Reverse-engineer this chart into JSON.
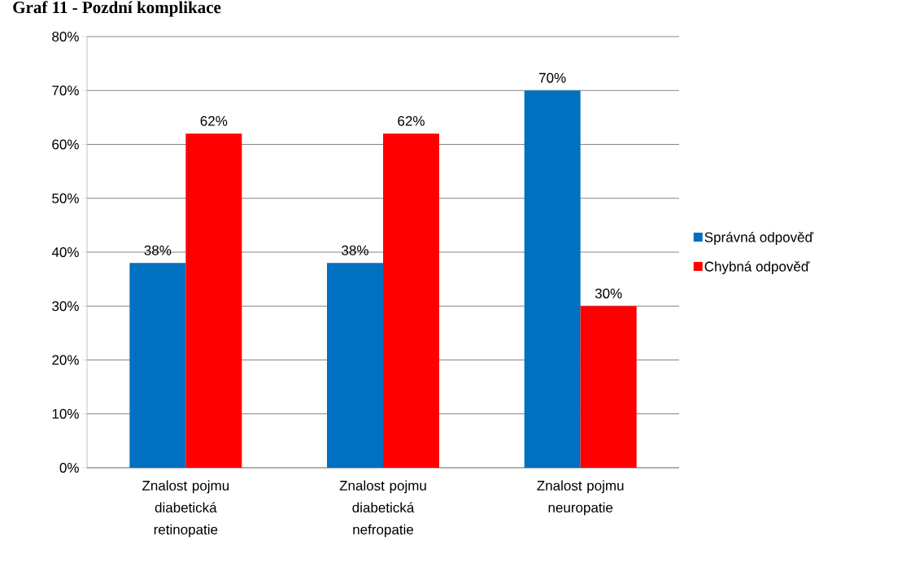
{
  "chart_data": {
    "type": "bar",
    "title": "Graf 11 - Pozdní komplikace",
    "categories": [
      "Znalost pojmu diabetická retinopatie",
      "Znalost pojmu diabetická nefropatie",
      "Znalost pojmu neuropatie"
    ],
    "series": [
      {
        "name": "Správná odpověď",
        "color": "#0070c0",
        "values": [
          38,
          38,
          70
        ],
        "value_labels": [
          "38%",
          "38%",
          "70%"
        ]
      },
      {
        "name": "Chybná odpověď",
        "color": "#ff0000",
        "values": [
          62,
          62,
          30
        ],
        "value_labels": [
          "62%",
          "62%",
          "30%"
        ]
      }
    ],
    "ylim": [
      0,
      80
    ],
    "yticks": [
      {
        "value": 0,
        "label": "0%"
      },
      {
        "value": 10,
        "label": "10%"
      },
      {
        "value": 20,
        "label": "20%"
      },
      {
        "value": 30,
        "label": "30%"
      },
      {
        "value": 40,
        "label": "40%"
      },
      {
        "value": 50,
        "label": "50%"
      },
      {
        "value": 60,
        "label": "60%"
      },
      {
        "value": 70,
        "label": "70%"
      },
      {
        "value": 80,
        "label": "80%"
      }
    ],
    "grid": "y",
    "legend": "right"
  }
}
